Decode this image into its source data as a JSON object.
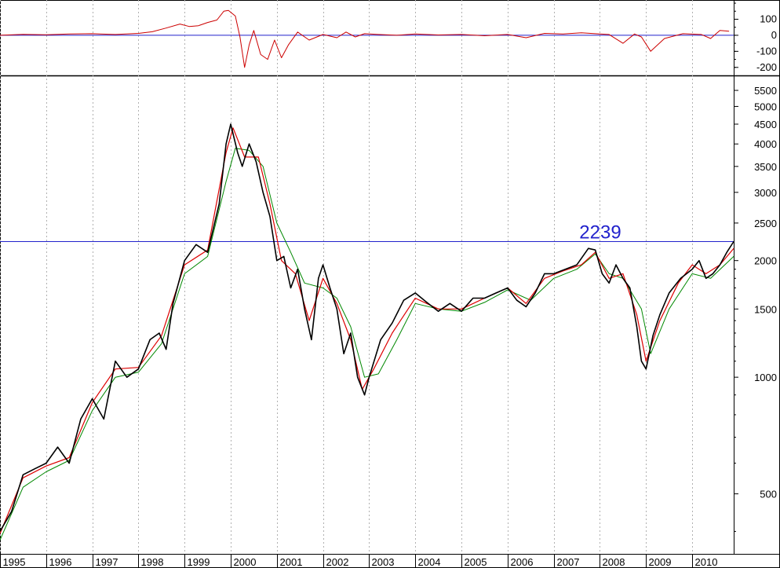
{
  "chart_data": [
    {
      "type": "line",
      "panel": "oscillator",
      "yscale": "linear",
      "ylim": [
        -250,
        210
      ],
      "yticks": [
        100,
        0,
        -100,
        -200
      ],
      "ytick_labels": [
        "100",
        "0",
        "-100",
        "-200"
      ],
      "zero_line": 0,
      "grid": false,
      "series": [
        {
          "color": "#cc0000",
          "x": [
            1995.0,
            1995.5,
            1996.0,
            1996.5,
            1997.0,
            1997.5,
            1998.0,
            1998.3,
            1998.6,
            1998.9,
            1999.1,
            1999.3,
            1999.5,
            1999.7,
            1999.85,
            1999.95,
            2000.1,
            2000.2,
            2000.3,
            2000.4,
            2000.5,
            2000.65,
            2000.8,
            2000.95,
            2001.1,
            2001.25,
            2001.45,
            2001.7,
            2002.0,
            2002.3,
            2002.5,
            2002.7,
            2002.9,
            2003.2,
            2003.6,
            2004.0,
            2004.5,
            2005.0,
            2005.5,
            2006.0,
            2006.4,
            2006.8,
            2007.2,
            2007.6,
            2007.9,
            2008.2,
            2008.5,
            2008.75,
            2008.9,
            2009.1,
            2009.4,
            2009.8,
            2010.2,
            2010.4,
            2010.6,
            2010.8
          ],
          "y": [
            0,
            6,
            3,
            8,
            10,
            5,
            12,
            22,
            45,
            70,
            55,
            60,
            80,
            95,
            150,
            155,
            120,
            -10,
            -200,
            -60,
            30,
            -120,
            -150,
            -30,
            -140,
            -60,
            20,
            -30,
            5,
            -15,
            20,
            -10,
            10,
            5,
            0,
            8,
            2,
            5,
            -3,
            5,
            -15,
            12,
            8,
            15,
            10,
            5,
            -50,
            8,
            -10,
            -100,
            -20,
            10,
            5,
            -20,
            30,
            25
          ]
        }
      ],
      "annotations": []
    },
    {
      "type": "line",
      "panel": "price",
      "yscale": "log",
      "ylim": [
        350,
        5900
      ],
      "yticks": [
        500,
        1000,
        1500,
        2000,
        2500,
        3000,
        3500,
        4000,
        4500,
        5000,
        5500
      ],
      "ytick_labels": [
        "500",
        "1000",
        "1500",
        "2000",
        "2500",
        "3000",
        "3500",
        "4000",
        "4500",
        "5000",
        "5500"
      ],
      "x_tick_labels": [
        "1995",
        "1996",
        "1997",
        "1998",
        "1999",
        "2000",
        "2001",
        "2002",
        "2003",
        "2004",
        "2005",
        "2006",
        "2007",
        "2008",
        "2009",
        "2010"
      ],
      "xlim": [
        1995.0,
        2010.9
      ],
      "grid": "vertical dotted per year",
      "horizontal_line": {
        "value": 2239,
        "label": "2239",
        "color": "#2222cc"
      },
      "series": [
        {
          "color": "#000000",
          "x": [
            1995.0,
            1995.25,
            1995.5,
            1995.75,
            1996.0,
            1996.25,
            1996.5,
            1996.75,
            1997.0,
            1997.25,
            1997.5,
            1997.75,
            1998.0,
            1998.25,
            1998.45,
            1998.6,
            1998.75,
            1999.0,
            1999.25,
            1999.5,
            1999.75,
            1999.9,
            2000.0,
            2000.15,
            2000.25,
            2000.4,
            2000.55,
            2000.7,
            2000.85,
            2001.0,
            2001.15,
            2001.3,
            2001.45,
            2001.6,
            2001.75,
            2001.9,
            2002.0,
            2002.15,
            2002.3,
            2002.45,
            2002.6,
            2002.75,
            2002.9,
            2003.0,
            2003.25,
            2003.5,
            2003.75,
            2004.0,
            2004.25,
            2004.5,
            2004.75,
            2005.0,
            2005.25,
            2005.5,
            2005.75,
            2006.0,
            2006.2,
            2006.4,
            2006.6,
            2006.8,
            2007.0,
            2007.25,
            2007.5,
            2007.75,
            2007.9,
            2008.05,
            2008.2,
            2008.35,
            2008.5,
            2008.65,
            2008.8,
            2008.9,
            2009.0,
            2009.15,
            2009.3,
            2009.5,
            2009.75,
            2010.0,
            2010.15,
            2010.3,
            2010.45,
            2010.6,
            2010.75,
            2010.9
          ],
          "y": [
            400,
            450,
            560,
            580,
            600,
            660,
            600,
            780,
            880,
            780,
            1100,
            1000,
            1050,
            1250,
            1300,
            1180,
            1550,
            2000,
            2200,
            2100,
            2800,
            4000,
            4500,
            3800,
            3500,
            4000,
            3600,
            3000,
            2600,
            2000,
            2050,
            1700,
            1900,
            1500,
            1250,
            1800,
            1950,
            1700,
            1500,
            1150,
            1300,
            1000,
            900,
            1000,
            1250,
            1380,
            1580,
            1650,
            1560,
            1480,
            1550,
            1480,
            1600,
            1600,
            1650,
            1700,
            1580,
            1520,
            1650,
            1850,
            1850,
            1900,
            1950,
            2150,
            2130,
            1850,
            1750,
            1950,
            1800,
            1700,
            1350,
            1100,
            1050,
            1280,
            1450,
            1650,
            1800,
            1900,
            2000,
            1800,
            1850,
            1950,
            2100,
            2239
          ]
        },
        {
          "color": "#dd0000",
          "x": [
            1995.0,
            1995.5,
            1996.0,
            1996.5,
            1997.0,
            1997.5,
            1998.0,
            1998.5,
            1999.0,
            1999.5,
            1999.9,
            2000.05,
            2000.3,
            2000.6,
            2000.85,
            2001.1,
            2001.4,
            2001.7,
            2002.0,
            2002.3,
            2002.6,
            2002.85,
            2003.1,
            2003.5,
            2004.0,
            2004.5,
            2005.0,
            2005.5,
            2006.0,
            2006.4,
            2006.8,
            2007.2,
            2007.6,
            2007.9,
            2008.2,
            2008.5,
            2008.8,
            2009.0,
            2009.3,
            2009.7,
            2010.0,
            2010.3,
            2010.6,
            2010.9
          ],
          "y": [
            395,
            550,
            590,
            620,
            860,
            1050,
            1060,
            1280,
            1950,
            2130,
            3800,
            4400,
            3700,
            3700,
            2800,
            2000,
            1850,
            1400,
            1800,
            1550,
            1250,
            930,
            1050,
            1300,
            1600,
            1500,
            1500,
            1600,
            1700,
            1550,
            1800,
            1880,
            1950,
            2100,
            1800,
            1850,
            1450,
            1100,
            1400,
            1750,
            1950,
            1850,
            1950,
            2150
          ]
        },
        {
          "color": "#008800",
          "x": [
            1995.0,
            1995.5,
            1996.0,
            1996.5,
            1997.0,
            1997.5,
            1998.0,
            1998.5,
            1999.0,
            1999.5,
            1999.9,
            2000.1,
            2000.4,
            2000.7,
            2001.0,
            2001.3,
            2001.6,
            2002.0,
            2002.3,
            2002.6,
            2002.9,
            2003.2,
            2003.6,
            2004.0,
            2004.5,
            2005.0,
            2005.5,
            2006.0,
            2006.5,
            2007.0,
            2007.5,
            2007.9,
            2008.2,
            2008.5,
            2008.9,
            2009.1,
            2009.5,
            2010.0,
            2010.4,
            2010.9
          ],
          "y": [
            380,
            520,
            570,
            610,
            820,
            1000,
            1030,
            1220,
            1850,
            2050,
            3200,
            3900,
            3850,
            3500,
            2500,
            2100,
            1750,
            1700,
            1600,
            1350,
            1000,
            1020,
            1250,
            1550,
            1500,
            1480,
            1560,
            1680,
            1580,
            1800,
            1900,
            2080,
            1850,
            1800,
            1500,
            1150,
            1500,
            1850,
            1800,
            2050
          ]
        }
      ],
      "annotations": [
        {
          "text": "2239",
          "color": "#2222cc"
        }
      ]
    }
  ]
}
